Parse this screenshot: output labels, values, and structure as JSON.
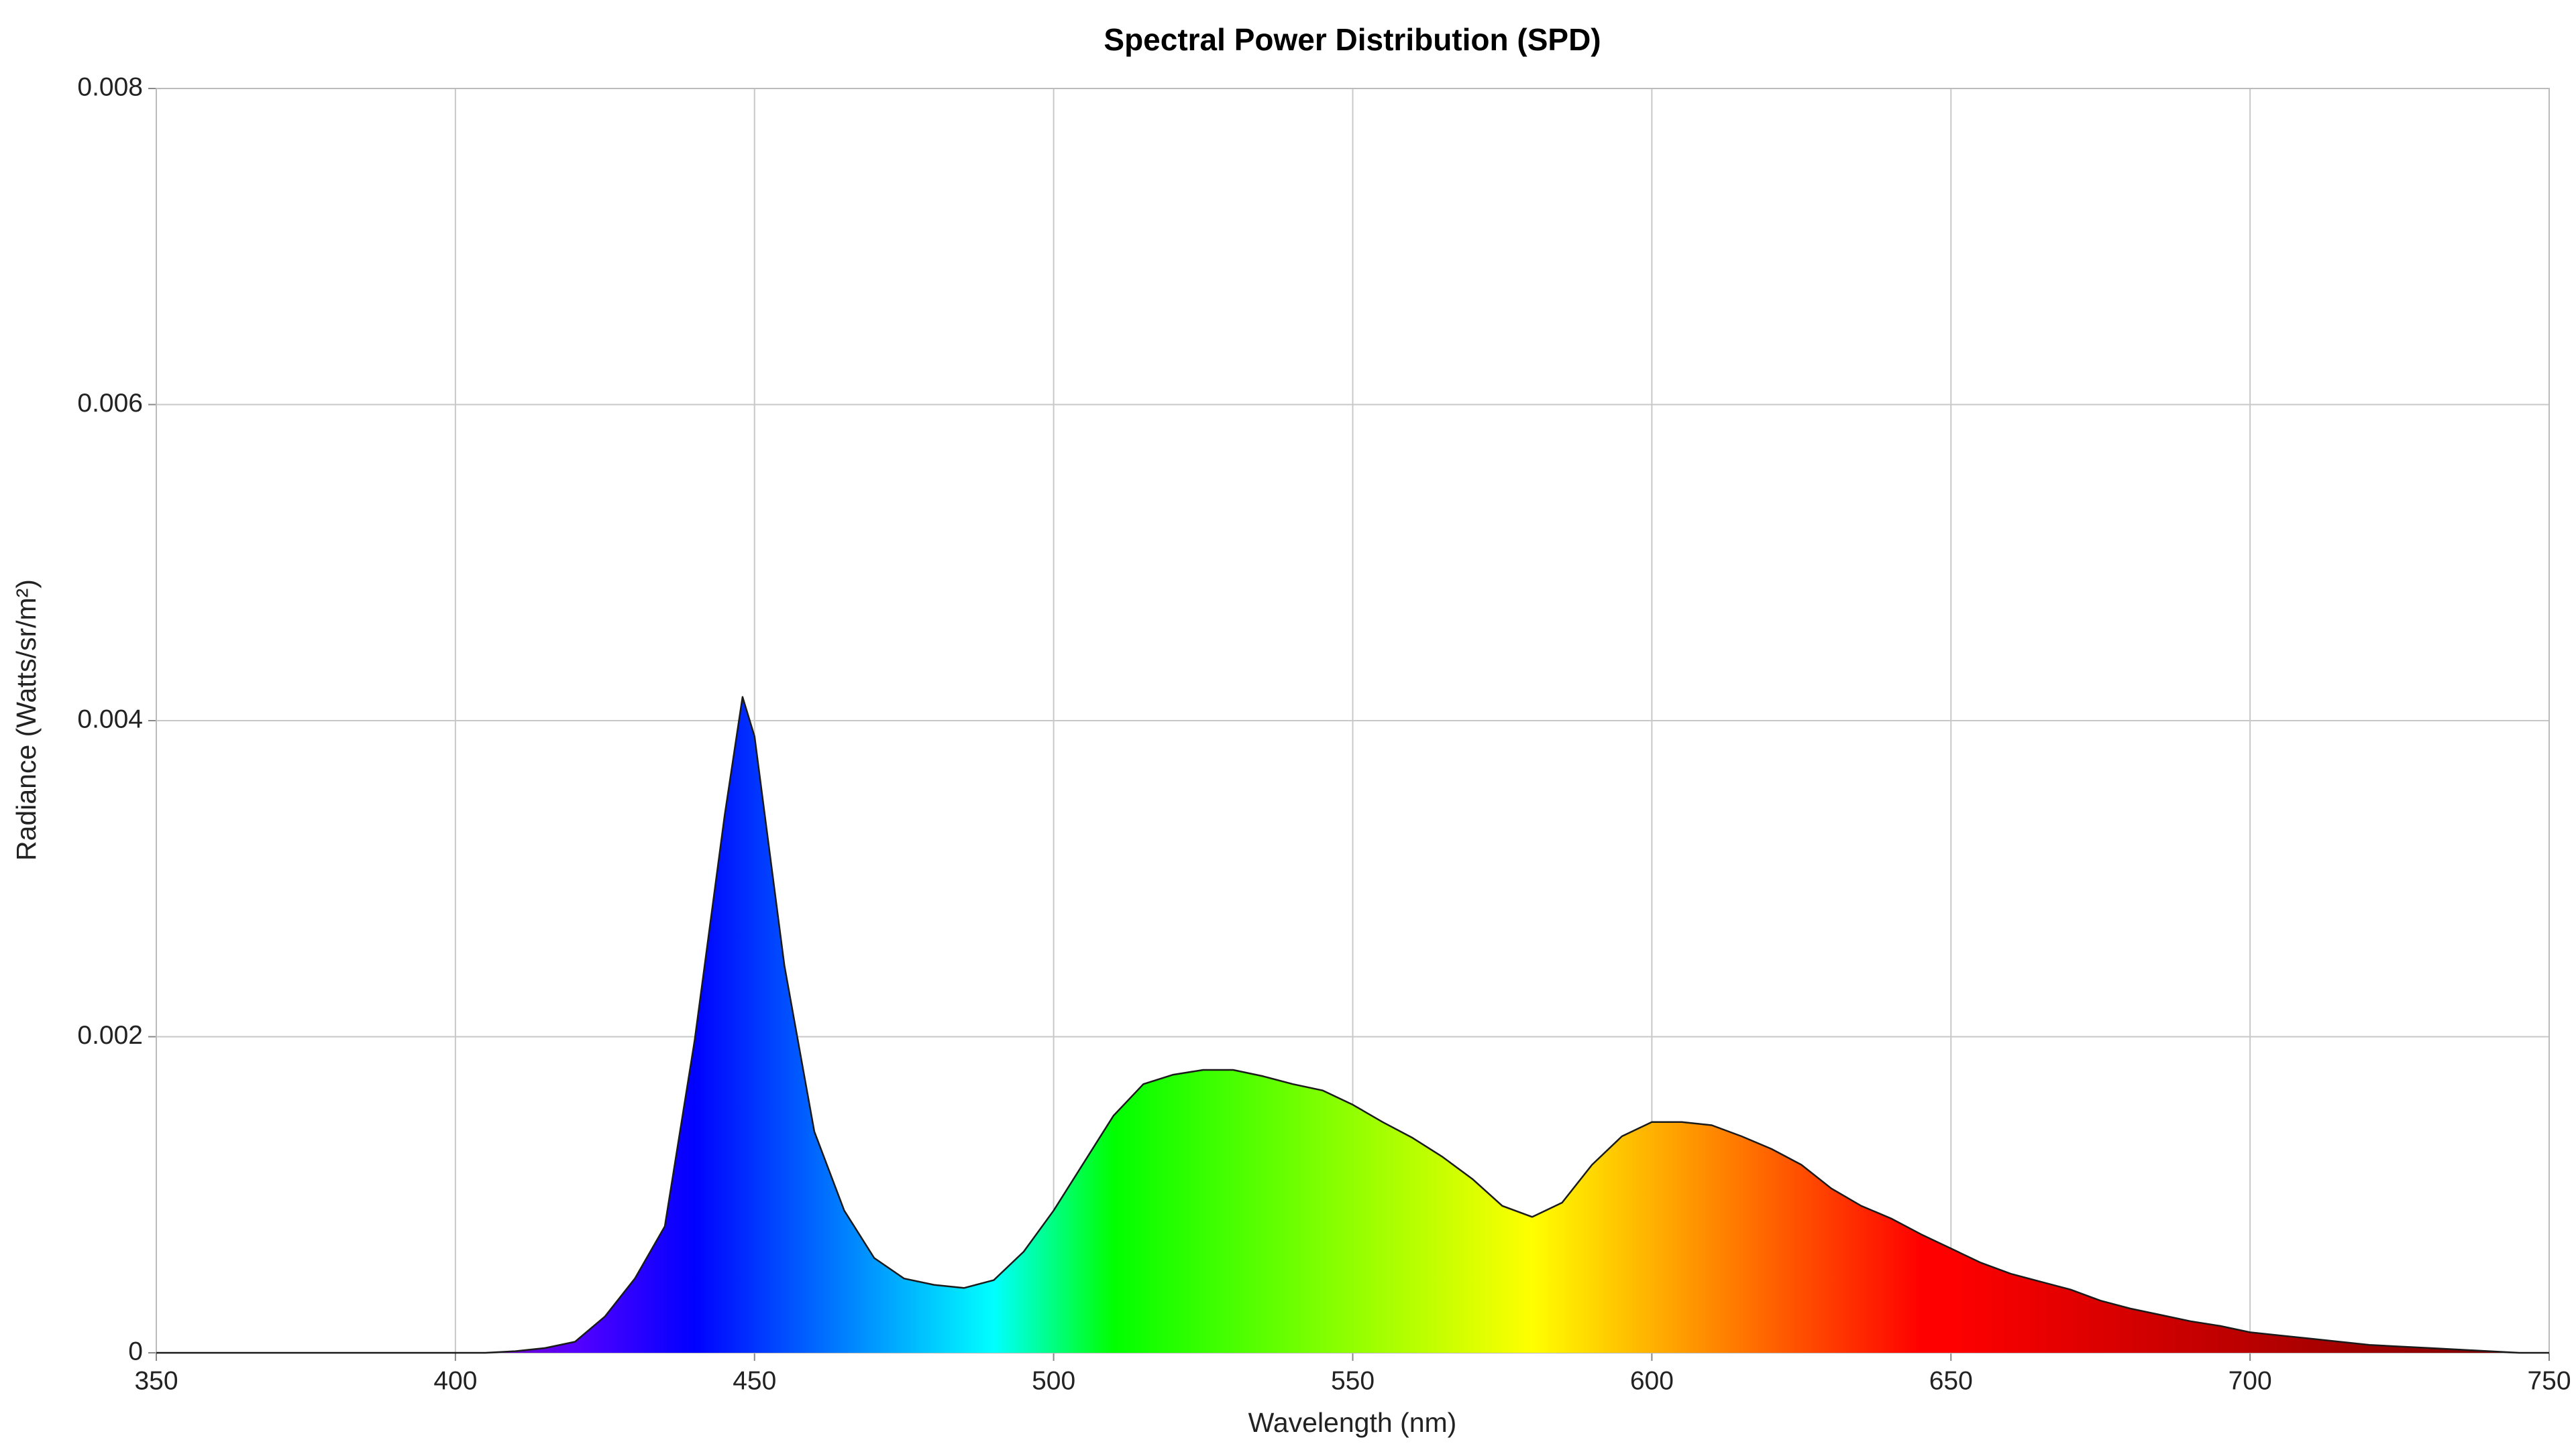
{
  "chart_data": {
    "type": "area",
    "title": "Spectral Power Distribution (SPD)",
    "x_label": "Wavelength (nm)",
    "y_label": "Radiance (Watts/sr/m²)",
    "x": [
      350,
      355,
      360,
      365,
      370,
      375,
      380,
      385,
      390,
      395,
      400,
      405,
      410,
      415,
      420,
      425,
      430,
      435,
      440,
      445,
      448,
      450,
      455,
      460,
      465,
      470,
      475,
      480,
      485,
      490,
      495,
      500,
      505,
      510,
      515,
      520,
      525,
      530,
      535,
      540,
      545,
      550,
      555,
      560,
      565,
      570,
      575,
      580,
      585,
      590,
      595,
      600,
      605,
      610,
      615,
      620,
      625,
      630,
      635,
      640,
      645,
      650,
      655,
      660,
      665,
      670,
      675,
      680,
      685,
      690,
      695,
      700,
      705,
      710,
      715,
      720,
      725,
      730,
      735,
      740,
      745,
      750
    ],
    "values": [
      0,
      0,
      0,
      0,
      0,
      0,
      0,
      0,
      0,
      0,
      0,
      0,
      1e-05,
      3e-05,
      7e-05,
      0.00023,
      0.00047,
      0.0008,
      0.00198,
      0.0034,
      0.00415,
      0.0039,
      0.00245,
      0.0014,
      0.0009,
      0.0006,
      0.00047,
      0.00043,
      0.00041,
      0.00046,
      0.00064,
      0.0009,
      0.0012,
      0.0015,
      0.0017,
      0.00176,
      0.00179,
      0.00179,
      0.00175,
      0.0017,
      0.00166,
      0.00157,
      0.00146,
      0.00136,
      0.00124,
      0.0011,
      0.00093,
      0.00086,
      0.00095,
      0.00119,
      0.00137,
      0.00146,
      0.00146,
      0.00144,
      0.00137,
      0.00129,
      0.00119,
      0.00104,
      0.00093,
      0.00085,
      0.00075,
      0.00066,
      0.00057,
      0.0005,
      0.00045,
      0.0004,
      0.00033,
      0.00028,
      0.00024,
      0.0002,
      0.00017,
      0.00013,
      0.00011,
      9e-05,
      7e-05,
      5e-05,
      4e-05,
      3e-05,
      2e-05,
      1e-05,
      0,
      0
    ],
    "line_color": "#1a1a1a",
    "xlim": [
      350,
      750
    ],
    "xticks": [
      350,
      400,
      450,
      500,
      550,
      600,
      650,
      700,
      750
    ],
    "ylim": [
      0,
      0.008
    ],
    "yticks": [
      0,
      0.002,
      0.004,
      0.006,
      0.008
    ],
    "grid": true
  }
}
